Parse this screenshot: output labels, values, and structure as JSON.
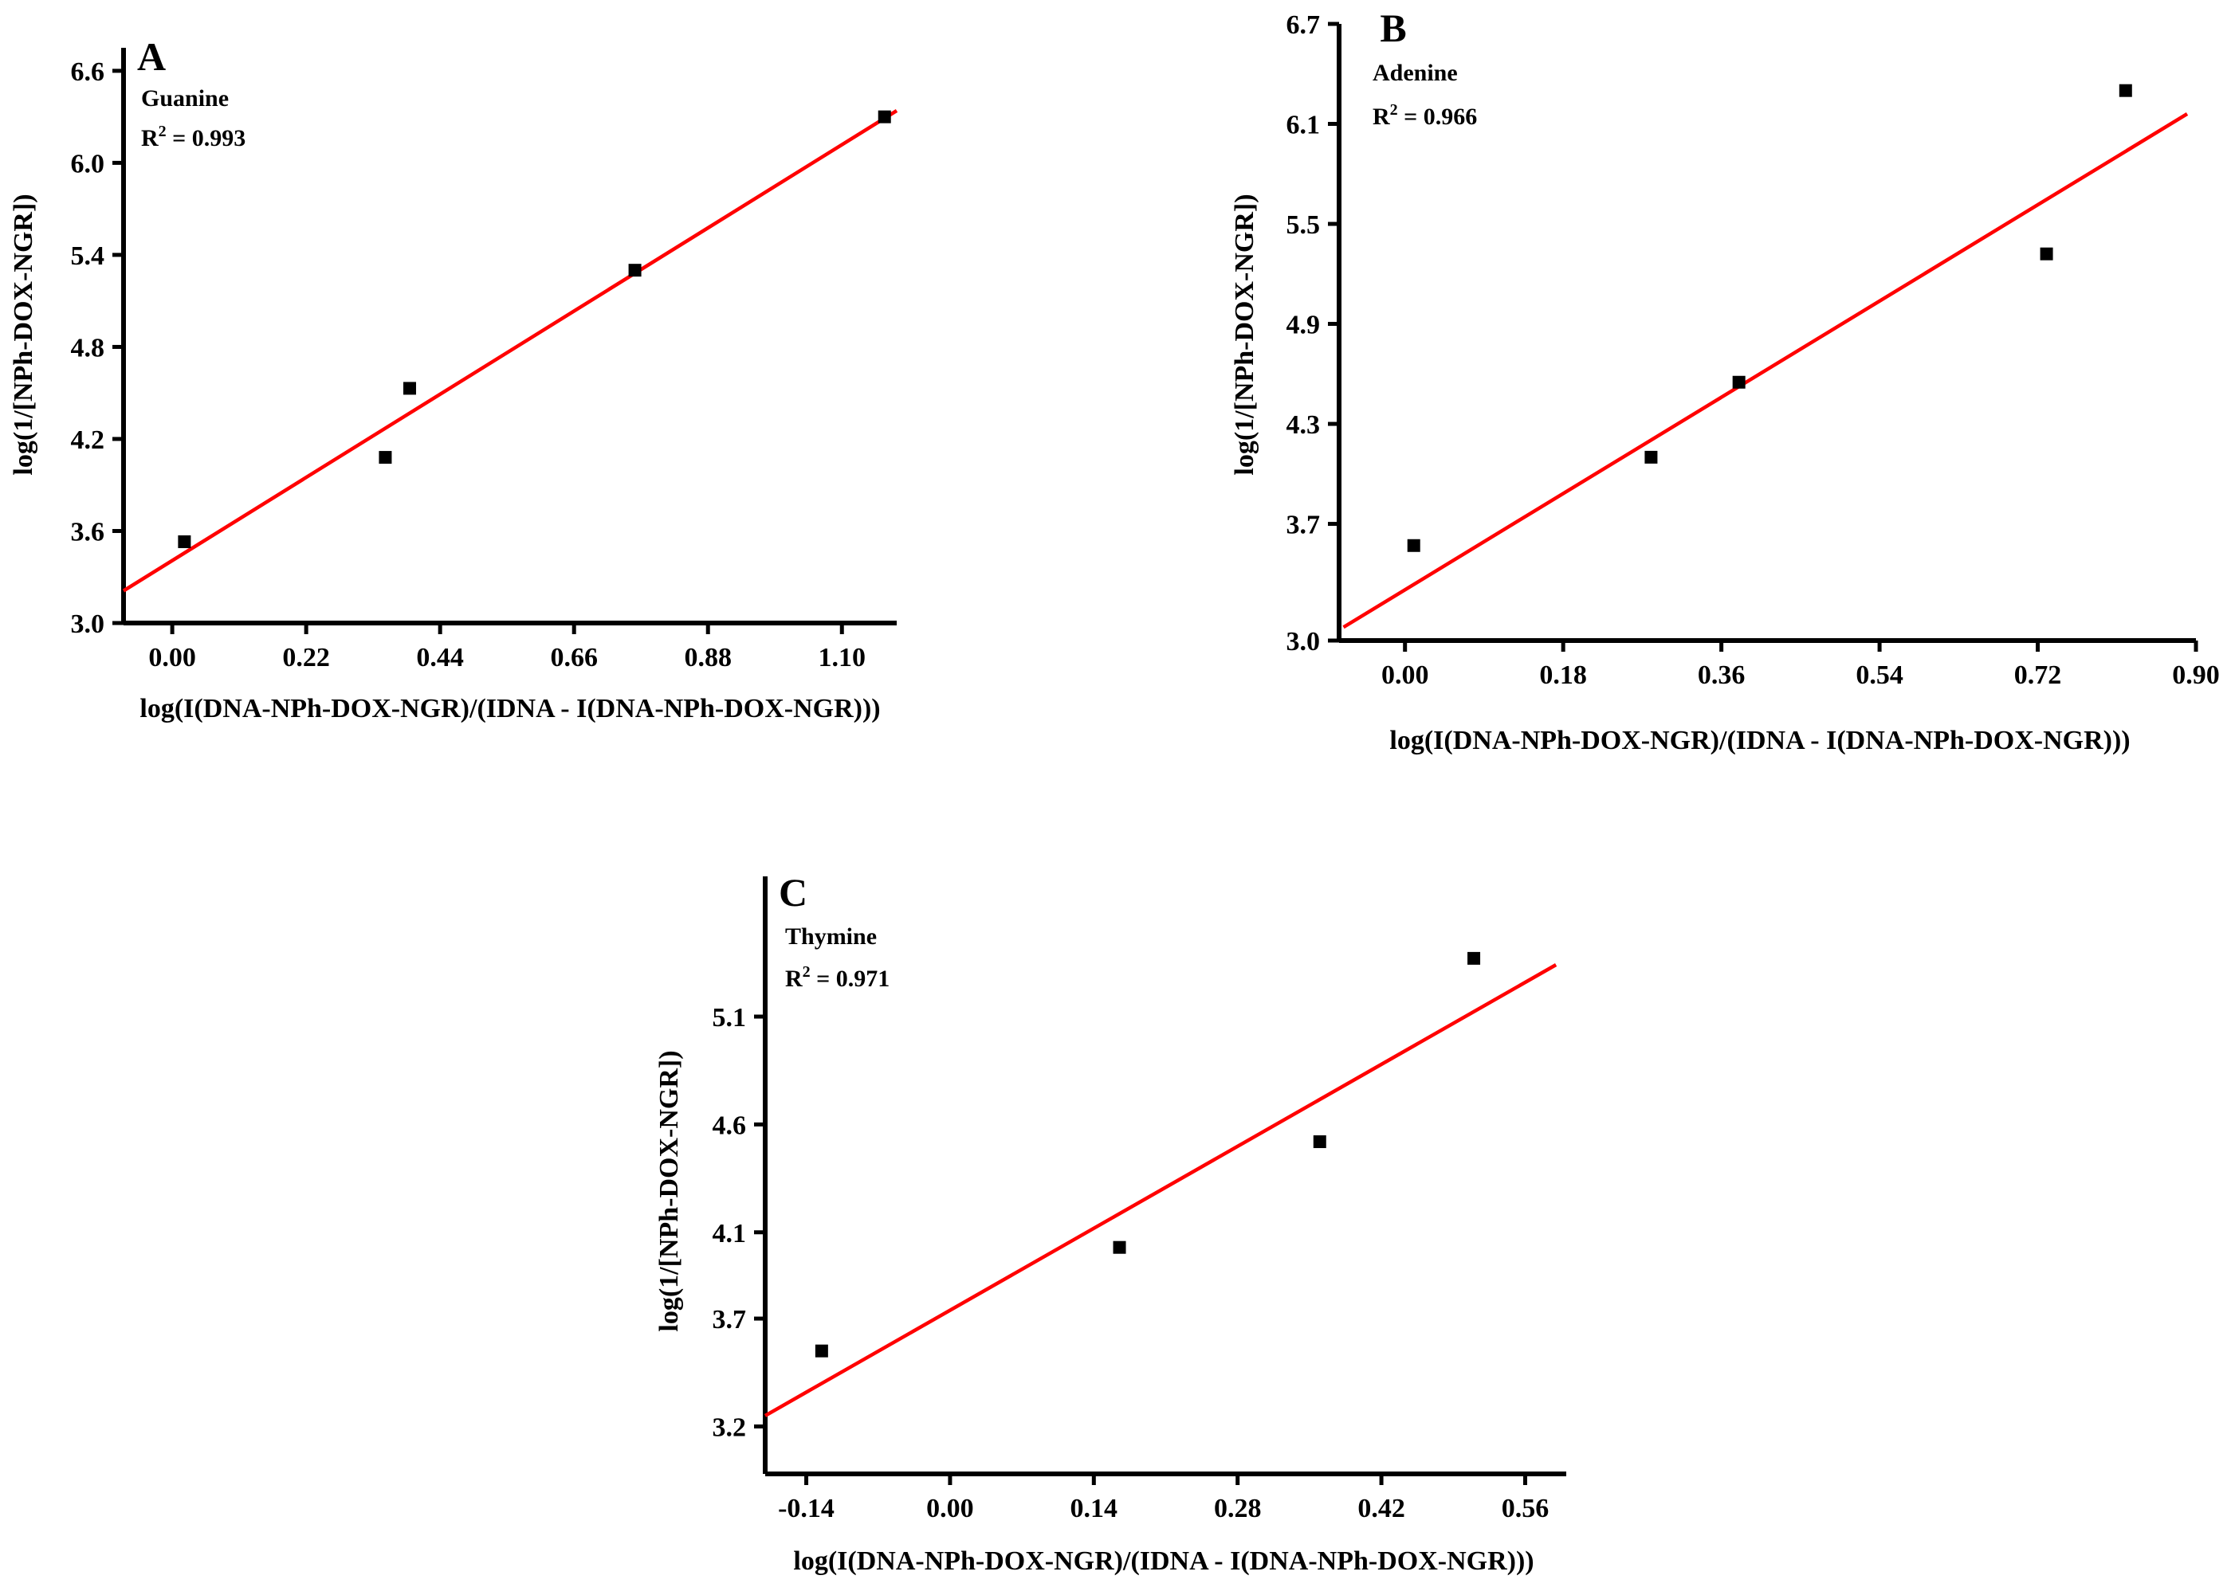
{
  "chart_data": [
    {
      "type": "scatter",
      "panel": "A",
      "name": "Guanine",
      "r2_base": "R",
      "r2_sup": "2",
      "r2_value": "= 0.993",
      "xlabel": "log(I(DNA-NPh-DOX-NGR)/(IDNA - I(DNA-NPh-DOX-NGR)))",
      "ylabel": "log(1/[NPh-DOX-NGR])",
      "xlim": [
        -0.08,
        1.19
      ],
      "ylim": [
        3.0,
        6.75
      ],
      "xticks": [
        "0.00",
        "0.22",
        "0.44",
        "0.66",
        "0.88",
        "1.10"
      ],
      "yticks": [
        "3.0",
        "3.6",
        "4.2",
        "4.8",
        "5.4",
        "6.0",
        "6.6"
      ],
      "points": [
        {
          "x": 0.02,
          "y": 3.53
        },
        {
          "x": 0.35,
          "y": 4.08
        },
        {
          "x": 0.39,
          "y": 4.53
        },
        {
          "x": 0.76,
          "y": 5.3
        },
        {
          "x": 1.17,
          "y": 6.3
        }
      ],
      "fit": {
        "x": [
          -0.08,
          1.19
        ],
        "y": [
          3.21,
          6.34
        ]
      }
    },
    {
      "type": "scatter",
      "panel": "B",
      "name": "Adenine",
      "r2_base": "R",
      "r2_sup": "2",
      "r2_value": "= 0.966",
      "xlabel": "log(I(DNA-NPh-DOX-NGR)/(IDNA - I(DNA-NPh-DOX-NGR)))",
      "ylabel": "log(1/[NPh-DOX-NGR])",
      "xlim": [
        -0.075,
        0.9
      ],
      "ylim": [
        3.0,
        6.7
      ],
      "xticks": [
        "0.00",
        "0.18",
        "0.36",
        "0.54",
        "0.72",
        "0.90"
      ],
      "yticks": [
        "3.0",
        "3.7",
        "4.3",
        "4.9",
        "5.5",
        "6.1",
        "6.7"
      ],
      "points": [
        {
          "x": 0.01,
          "y": 3.57
        },
        {
          "x": 0.28,
          "y": 4.1
        },
        {
          "x": 0.38,
          "y": 4.55
        },
        {
          "x": 0.73,
          "y": 5.32
        },
        {
          "x": 0.82,
          "y": 6.3
        }
      ],
      "fit": {
        "x": [
          -0.07,
          0.89
        ],
        "y": [
          3.08,
          6.16
        ]
      }
    },
    {
      "type": "scatter",
      "panel": "C",
      "name": "Thymine",
      "r2_base": "R",
      "r2_sup": "2",
      "r2_value": "= 0.971",
      "xlabel": "log(I(DNA-NPh-DOX-NGR)/(IDNA - I(DNA-NPh-DOX-NGR)))",
      "ylabel": "log(1/[NPh-DOX-NGR])",
      "xlim": [
        -0.18,
        0.6
      ],
      "ylim": [
        2.98,
        5.75
      ],
      "xticks": [
        "-0.14",
        "0.00",
        "0.14",
        "0.28",
        "0.42",
        "0.56"
      ],
      "yticks": [
        "3.2",
        "3.7",
        "4.1",
        "4.6",
        "5.1"
      ],
      "points": [
        {
          "x": -0.125,
          "y": 3.55
        },
        {
          "x": 0.165,
          "y": 4.03
        },
        {
          "x": 0.36,
          "y": 4.52
        },
        {
          "x": 0.51,
          "y": 5.37
        }
      ],
      "fit": {
        "x": [
          -0.18,
          0.59
        ],
        "y": [
          3.25,
          5.34
        ]
      }
    }
  ]
}
